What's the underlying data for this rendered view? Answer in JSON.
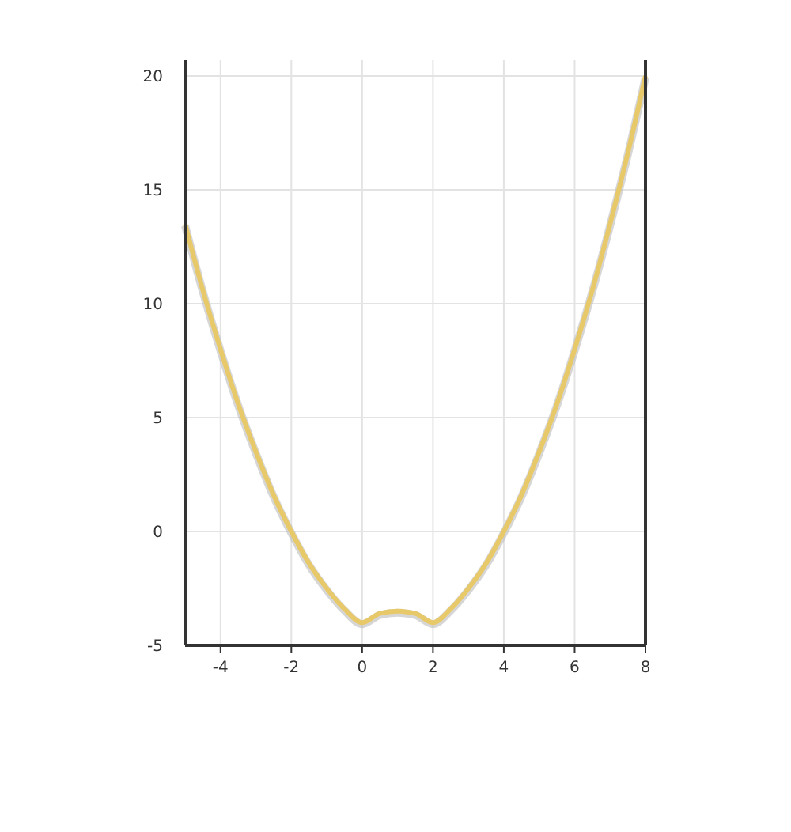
{
  "chart_data": {
    "type": "line",
    "x": [
      -5,
      -4.5,
      -4,
      -3.5,
      -3,
      -2.5,
      -2,
      -1.5,
      -1,
      -0.5,
      0,
      0.5,
      1,
      1.5,
      2,
      2.5,
      3,
      3.5,
      4,
      4.5,
      5,
      5.5,
      6,
      6.5,
      7,
      7.5,
      8
    ],
    "series": [
      {
        "color": "#e8c96a",
        "values": [
          13.5,
          10.6,
          8,
          5.6,
          3.5,
          1.6,
          0,
          -1.4,
          -2.5,
          -3.4,
          -4,
          -3.6,
          -3.5,
          -3.6,
          -4,
          -3.4,
          -2.5,
          -1.4,
          0,
          1.6,
          3.5,
          5.6,
          8,
          10.6,
          13.5,
          16.6,
          20
        ]
      }
    ],
    "xlim": [
      -5,
      8
    ],
    "xticks": [
      -4,
      -2,
      0,
      2,
      4,
      6,
      8
    ],
    "ylim": [
      -5,
      20
    ],
    "yticks": [
      -5,
      0,
      5,
      10,
      15,
      20
    ],
    "grid": true,
    "marker": "none",
    "line_style": "solid"
  }
}
